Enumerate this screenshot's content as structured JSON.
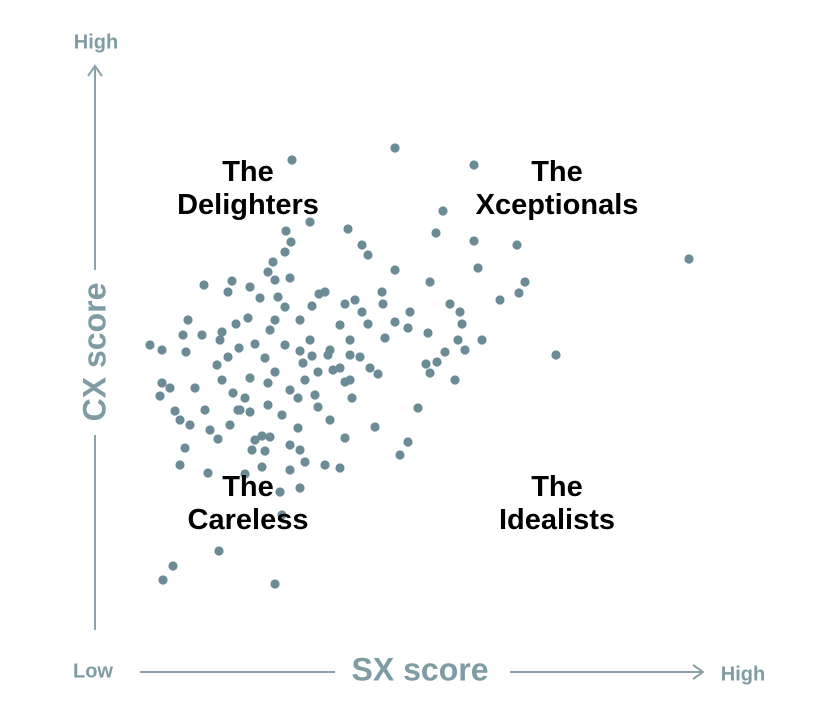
{
  "chart_data": {
    "type": "scatter",
    "x_label": "SX score",
    "y_label": "CX score",
    "x_axis_low": "Low",
    "x_axis_high": "High",
    "y_axis_high": "High",
    "color": "#6b8c96",
    "xlim": [
      0,
      610
    ],
    "ylim": [
      0,
      565
    ],
    "annotations": [
      {
        "lines": [
          "The",
          "Delighters"
        ]
      },
      {
        "lines": [
          "The",
          "Xceptionals"
        ]
      },
      {
        "lines": [
          "The",
          "Careless"
        ]
      },
      {
        "lines": [
          "The",
          "Idealists"
        ]
      }
    ],
    "x": [
      197,
      300,
      379,
      348,
      341,
      379,
      422,
      594,
      430,
      424,
      383,
      405,
      461,
      387,
      370,
      363,
      367,
      365,
      355,
      335,
      300,
      287,
      288,
      315,
      313,
      300,
      290,
      333,
      331,
      335,
      342,
      350,
      360,
      323,
      313,
      305,
      280,
      257,
      250,
      238,
      255,
      265,
      275,
      283,
      273,
      267,
      260,
      250,
      245,
      255,
      230,
      224,
      217,
      205,
      190,
      183,
      195,
      190,
      196,
      191,
      215,
      253,
      267,
      273,
      178,
      173,
      180,
      165,
      155,
      137,
      133,
      109,
      153,
      141,
      127,
      107,
      88,
      93,
      55,
      67,
      91,
      125,
      133,
      144,
      160,
      170,
      180,
      173,
      190,
      205,
      208,
      217,
      223,
      233,
      245,
      180,
      175,
      195,
      203,
      210,
      220,
      223,
      235,
      250,
      230,
      245,
      155,
      150,
      138,
      127,
      122,
      110,
      100,
      75,
      67,
      65,
      80,
      85,
      95,
      115,
      135,
      143,
      155,
      160,
      167,
      175,
      187,
      203,
      123,
      90,
      85,
      113,
      150,
      167,
      195,
      205,
      185,
      187,
      124,
      78,
      68,
      180,
      210,
      170,
      157,
      205,
      195,
      145,
      173,
      215,
      235,
      255
    ],
    "y": [
      470,
      482,
      465,
      419,
      397,
      389,
      385,
      371,
      348,
      337,
      362,
      330,
      275,
      290,
      280,
      290,
      306,
      318,
      326,
      348,
      360,
      338,
      326,
      318,
      302,
      308,
      292,
      297,
      266,
      257,
      268,
      278,
      250,
      222,
      188,
      175,
      203,
      232,
      248,
      260,
      250,
      273,
      262,
      256,
      306,
      318,
      330,
      326,
      305,
      290,
      338,
      336,
      324,
      310,
      323,
      333,
      352,
      378,
      388,
      399,
      408,
      401,
      385,
      375,
      368,
      358,
      350,
      332,
      343,
      349,
      338,
      345,
      312,
      306,
      298,
      295,
      295,
      310,
      285,
      280,
      278,
      290,
      273,
      282,
      286,
      272,
      258,
      247,
      285,
      279,
      267,
      274,
      258,
      275,
      262,
      310,
      300,
      240,
      232,
      250,
      235,
      223,
      210,
      192,
      165,
      162,
      252,
      232,
      237,
      250,
      265,
      220,
      242,
      242,
      247,
      234,
      219,
      210,
      205,
      200,
      205,
      220,
      218,
      190,
      194,
      193,
      215,
      202,
      191,
      182,
      165,
      157,
      156,
      163,
      160,
      142,
      138,
      115,
      79,
      64,
      50,
      46,
      168,
      179,
      180,
      180,
      185,
      220,
      225,
      290,
      280,
      275
    ]
  }
}
